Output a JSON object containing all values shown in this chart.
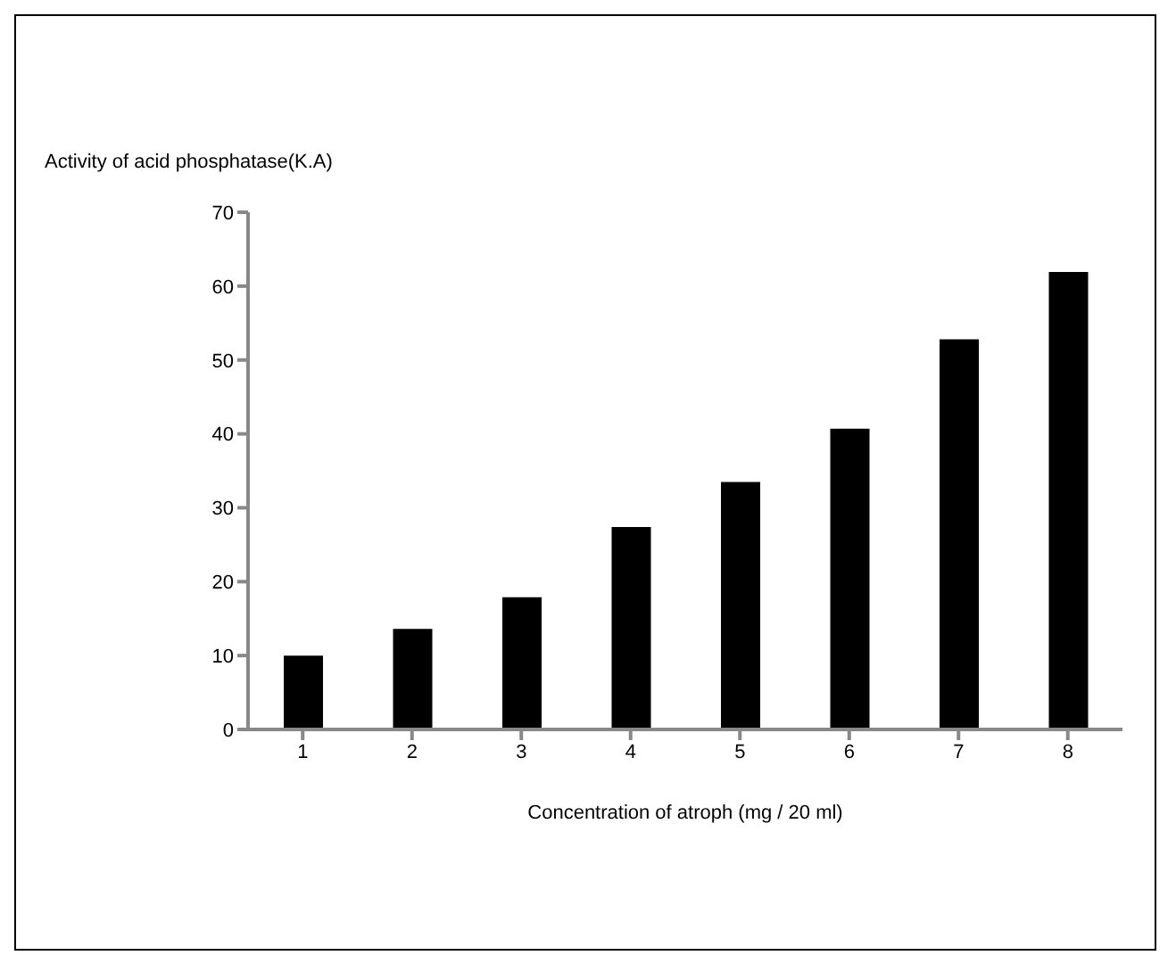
{
  "chart_data": {
    "type": "bar",
    "ylabel": "Activity of acid phosphatase(K.A)",
    "xlabel": "Concentration of atroph (mg / 20 ml)",
    "categories": [
      "1",
      "2",
      "3",
      "4",
      "5",
      "6",
      "7",
      "8"
    ],
    "values": [
      10,
      13.6,
      17.9,
      27.4,
      33.5,
      40.7,
      52.8,
      61.9
    ],
    "color": "#000000",
    "ylim": [
      0,
      70
    ],
    "yticks": [
      0,
      10,
      20,
      30,
      40,
      50,
      60,
      70
    ],
    "grid": false,
    "legend": false
  }
}
